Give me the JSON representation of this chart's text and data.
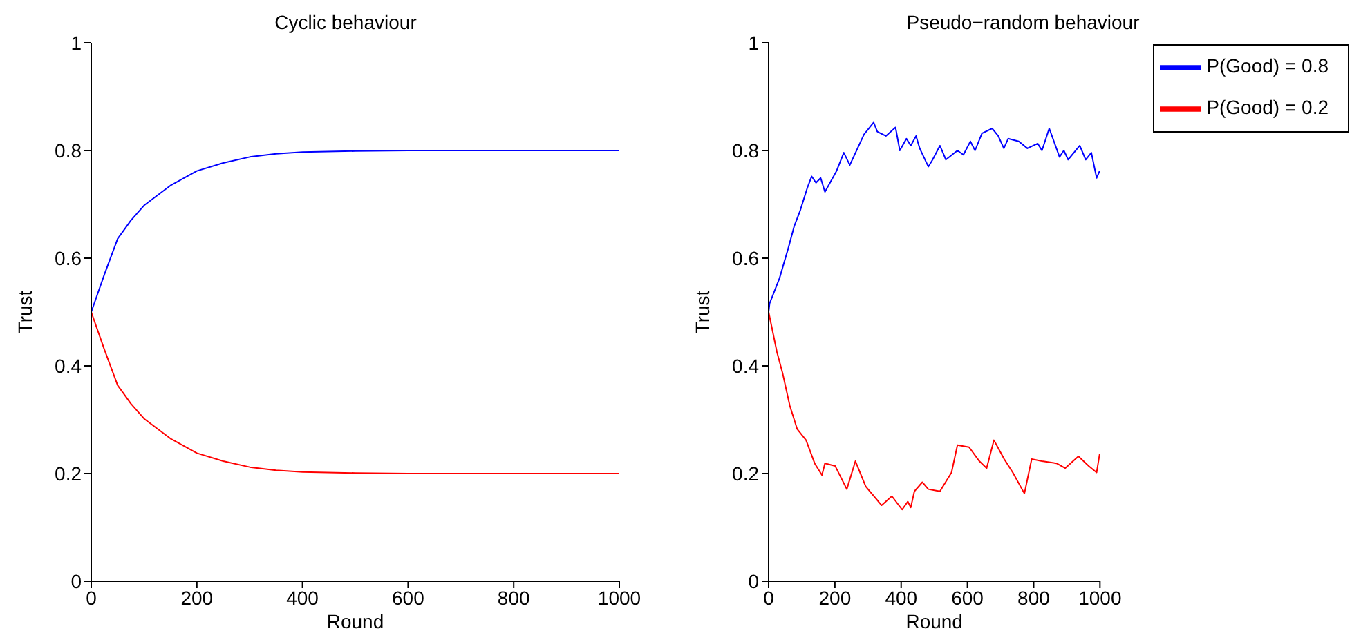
{
  "chart_data": [
    {
      "type": "line",
      "title": "Cyclic behaviour",
      "xlabel": "Round",
      "ylabel": "Trust",
      "xlim": [
        0,
        1000
      ],
      "xticks": [
        0,
        200,
        400,
        600,
        800,
        1000
      ],
      "ylim": [
        0,
        1
      ],
      "yticks": [
        0,
        0.2,
        0.4,
        0.6,
        0.8,
        1
      ],
      "grid": false,
      "legend": false,
      "marker": "none",
      "line_style": "solid",
      "series": [
        {
          "color": "#0000ff",
          "x": [
            0,
            25,
            50,
            75,
            100,
            150,
            200,
            250,
            300,
            350,
            400,
            500,
            600,
            800,
            1000
          ],
          "values": [
            0.5,
            0.57,
            0.636,
            0.67,
            0.698,
            0.735,
            0.762,
            0.777,
            0.788,
            0.794,
            0.797,
            0.799,
            0.8,
            0.8,
            0.8
          ]
        },
        {
          "color": "#ff0000",
          "x": [
            0,
            25,
            50,
            75,
            100,
            150,
            200,
            250,
            300,
            350,
            400,
            500,
            600,
            800,
            1000
          ],
          "values": [
            0.5,
            0.43,
            0.364,
            0.33,
            0.302,
            0.265,
            0.238,
            0.223,
            0.212,
            0.206,
            0.203,
            0.201,
            0.2,
            0.2,
            0.2
          ]
        }
      ]
    },
    {
      "type": "line",
      "title": "Pseudo−random behaviour",
      "xlabel": "Round",
      "ylabel": "Trust",
      "xlim": [
        0,
        1000
      ],
      "xticks": [
        0,
        200,
        400,
        600,
        800,
        1000
      ],
      "ylim": [
        0,
        1
      ],
      "yticks": [
        0,
        0.2,
        0.4,
        0.6,
        0.8,
        1
      ],
      "grid": false,
      "legend": "top right",
      "marker": "none",
      "line_style": "solid",
      "series": [
        {
          "name": "P(Good) = 0.8",
          "color": "#0000ff",
          "x": [
            0,
            3,
            33,
            60,
            77,
            95,
            117,
            130,
            143,
            157,
            170,
            205,
            227,
            245,
            288,
            317,
            328,
            354,
            383,
            396,
            416,
            429,
            445,
            456,
            482,
            495,
            517,
            535,
            570,
            588,
            609,
            623,
            644,
            675,
            693,
            710,
            723,
            755,
            781,
            812,
            825,
            847,
            878,
            891,
            904,
            939,
            957,
            974,
            990,
            999
          ],
          "values": [
            0.5,
            0.516,
            0.563,
            0.62,
            0.659,
            0.688,
            0.731,
            0.752,
            0.74,
            0.749,
            0.723,
            0.762,
            0.796,
            0.773,
            0.83,
            0.852,
            0.835,
            0.827,
            0.843,
            0.8,
            0.822,
            0.809,
            0.827,
            0.804,
            0.77,
            0.783,
            0.809,
            0.783,
            0.8,
            0.792,
            0.817,
            0.8,
            0.832,
            0.841,
            0.827,
            0.804,
            0.822,
            0.817,
            0.804,
            0.813,
            0.8,
            0.841,
            0.788,
            0.8,
            0.783,
            0.809,
            0.783,
            0.796,
            0.749,
            0.762
          ]
        },
        {
          "name": "P(Good) = 0.2",
          "color": "#ff0000",
          "x": [
            0,
            25,
            42,
            64,
            86,
            113,
            139,
            161,
            170,
            201,
            236,
            262,
            293,
            341,
            372,
            403,
            420,
            429,
            440,
            464,
            482,
            517,
            552,
            570,
            605,
            636,
            658,
            680,
            711,
            737,
            772,
            794,
            825,
            869,
            895,
            935,
            966,
            990,
            999
          ],
          "values": [
            0.5,
            0.426,
            0.387,
            0.326,
            0.283,
            0.262,
            0.219,
            0.197,
            0.219,
            0.214,
            0.171,
            0.223,
            0.176,
            0.141,
            0.158,
            0.133,
            0.148,
            0.137,
            0.167,
            0.184,
            0.171,
            0.167,
            0.202,
            0.253,
            0.249,
            0.223,
            0.21,
            0.262,
            0.227,
            0.202,
            0.163,
            0.227,
            0.223,
            0.219,
            0.21,
            0.232,
            0.214,
            0.202,
            0.236
          ]
        }
      ]
    }
  ]
}
